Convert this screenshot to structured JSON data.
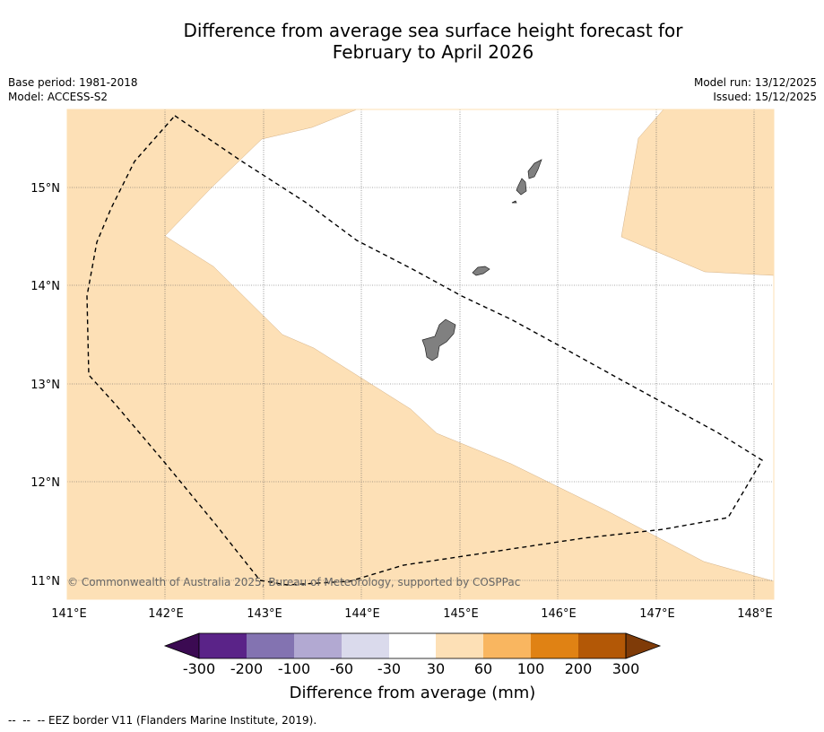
{
  "title": {
    "line1": "Difference from average sea surface height forecast for",
    "line2": "February to April 2026"
  },
  "meta": {
    "base_period": "Base period: 1981-2018",
    "model": "Model: ACCESS-S2",
    "model_run": "Model run: 13/12/2025",
    "issued": "Issued: 15/12/2025"
  },
  "map": {
    "lon_ticks": [
      "141°E",
      "142°E",
      "143°E",
      "144°E",
      "145°E",
      "146°E",
      "147°E",
      "148°E"
    ],
    "lat_ticks": [
      "15°N",
      "14°N",
      "13°N",
      "12°N",
      "11°N"
    ],
    "copyright": "© Commonwealth of Australia 2025, Bureau of Meteorology, supported by COSPPac",
    "colors": {
      "ocean_light_orange": "#fde0b6",
      "ocean_white": "#ffffff",
      "land": "#808080"
    }
  },
  "colorbar": {
    "tick_labels": [
      "-300",
      "-200",
      "-100",
      "-60",
      "-30",
      "30",
      "60",
      "100",
      "200",
      "300"
    ],
    "colors": [
      "#3b0a52",
      "#5a2388",
      "#8373b1",
      "#b2a9d2",
      "#dadaec",
      "#ffffff",
      "#fde0b6",
      "#f9b660",
      "#e08214",
      "#b35806",
      "#7f3b08"
    ],
    "label": "Difference from average (mm)"
  },
  "footnote": "--  --  -- EEZ border V11 (Flanders Marine Institute, 2019)."
}
